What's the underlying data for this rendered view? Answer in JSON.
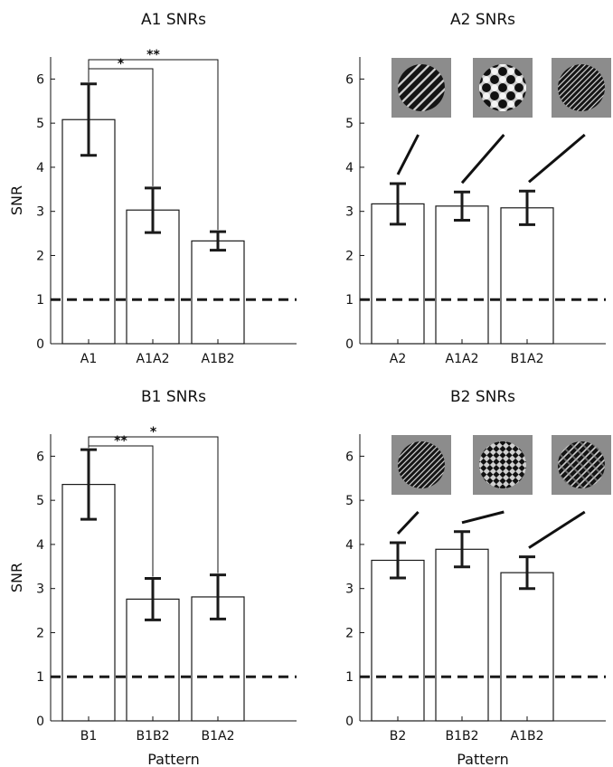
{
  "chart_data": [
    {
      "type": "bar",
      "title": "A1 SNRs",
      "xlabel": "",
      "ylabel": "SNR",
      "ylim": [
        0,
        6.5
      ],
      "yticks": [
        0,
        1,
        2,
        3,
        4,
        5,
        6
      ],
      "categories": [
        "A1",
        "A1A2",
        "A1B2"
      ],
      "values": [
        5.08,
        3.03,
        2.33
      ],
      "error_low": [
        4.27,
        2.52,
        2.12
      ],
      "error_high": [
        5.89,
        3.53,
        2.54
      ],
      "reference_line": 1,
      "significance": [
        {
          "from": 0,
          "to": 1,
          "label": "*"
        },
        {
          "from": 0,
          "to": 2,
          "label": "**"
        }
      ],
      "pattern_icons": []
    },
    {
      "type": "bar",
      "title": "A2 SNRs",
      "xlabel": "",
      "ylabel": "",
      "ylim": [
        0,
        6.5
      ],
      "yticks": [
        0,
        1,
        2,
        3,
        4,
        5,
        6
      ],
      "categories": [
        "A2",
        "A1A2",
        "B1A2"
      ],
      "values": [
        3.17,
        3.12,
        3.08
      ],
      "error_low": [
        2.71,
        2.8,
        2.7
      ],
      "error_high": [
        3.63,
        3.44,
        3.46
      ],
      "reference_line": 1,
      "significance": [],
      "pattern_icons": [
        "diagonal-stripes-wide",
        "checker-blobs",
        "diagonal-stripes-fine"
      ]
    },
    {
      "type": "bar",
      "title": "B1 SNRs",
      "xlabel": "Pattern",
      "ylabel": "SNR",
      "ylim": [
        0,
        6.5
      ],
      "yticks": [
        0,
        1,
        2,
        3,
        4,
        5,
        6
      ],
      "categories": [
        "B1",
        "B1B2",
        "B1A2"
      ],
      "values": [
        5.36,
        2.76,
        2.81
      ],
      "error_low": [
        4.57,
        2.29,
        2.31
      ],
      "error_high": [
        6.15,
        3.23,
        3.31
      ],
      "reference_line": 1,
      "significance": [
        {
          "from": 0,
          "to": 1,
          "label": "**"
        },
        {
          "from": 0,
          "to": 2,
          "label": "*"
        }
      ],
      "pattern_icons": []
    },
    {
      "type": "bar",
      "title": "B2 SNRs",
      "xlabel": "Pattern",
      "ylabel": "",
      "ylim": [
        0,
        6.5
      ],
      "yticks": [
        0,
        1,
        2,
        3,
        4,
        5,
        6
      ],
      "categories": [
        "B2",
        "B1B2",
        "A1B2"
      ],
      "values": [
        3.64,
        3.89,
        3.36
      ],
      "error_low": [
        3.24,
        3.49,
        3.0
      ],
      "error_high": [
        4.04,
        4.29,
        3.72
      ],
      "reference_line": 1,
      "significance": [],
      "pattern_icons": [
        "diagonal-stripes-fine",
        "checker-fine",
        "diagonal-stripes-mixed"
      ]
    }
  ],
  "colors": {
    "bar_fill": "#ffffff",
    "bar_stroke": "#1a1a1a",
    "error_bar": "#1a1a1a",
    "reference_line": "#1a1a1a",
    "icon_background": "#8c8c8c"
  }
}
